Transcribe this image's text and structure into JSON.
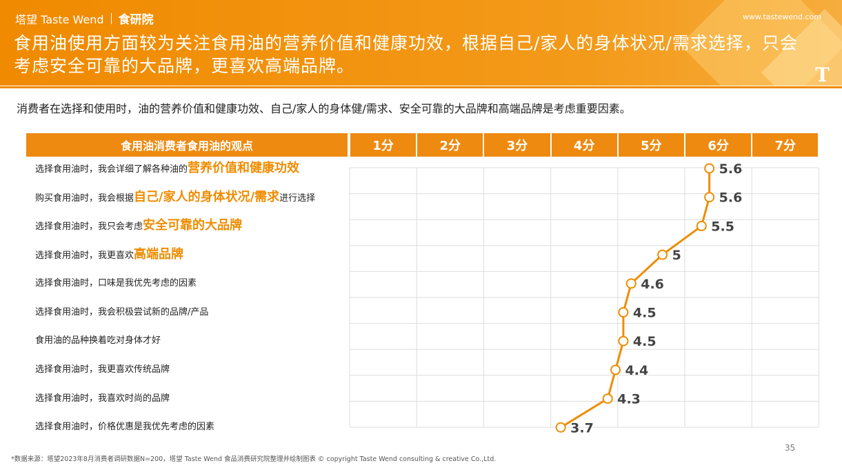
{
  "header": {
    "brand": "塔望 Taste Wend",
    "lab": "食研院",
    "site": "www.tastewend.com",
    "title": "食用油使用方面较为关注食用油的营养价值和健康功效，根据自己/家人的身体状况/需求选择，只会考虑安全可靠的大品牌，更喜欢高端品牌。",
    "logo_letter": "T"
  },
  "subtitle": "消费者在选择和使用时，油的营养价值和健康功效、自己/家人的身体健/需求、安全可靠的大品牌和高端品牌是考虑重要因素。",
  "chart_data": {
    "type": "line",
    "title": "食用油消费者食用油的观点",
    "x_categories": [
      "1分",
      "2分",
      "3分",
      "4分",
      "5分",
      "6分",
      "7分"
    ],
    "xlim": [
      1,
      7
    ],
    "grid": true,
    "rows": [
      {
        "prefix": "选择食用油时，我会详细了解各种油的",
        "highlight": "营养价值和健康功效",
        "suffix": "",
        "value": 5.6,
        "label": "5.6"
      },
      {
        "prefix": "购买食用油时，我会根据",
        "highlight": "自己/家人的身体状况/需求",
        "suffix": "进行选择",
        "value": 5.6,
        "label": "5.6"
      },
      {
        "prefix": "选择食用油时，我只会考虑",
        "highlight": "安全可靠的大品牌",
        "suffix": "",
        "value": 5.5,
        "label": "5.5"
      },
      {
        "prefix": "选择食用油时，我更喜欢",
        "highlight": "高端品牌",
        "suffix": "",
        "value": 5.0,
        "label": "5"
      },
      {
        "prefix": "选择食用油时，口味是我优先考虑的因素",
        "highlight": "",
        "suffix": "",
        "value": 4.6,
        "label": "4.6"
      },
      {
        "prefix": "选择食用油时，我会积极尝试新的品牌/产品",
        "highlight": "",
        "suffix": "",
        "value": 4.5,
        "label": "4.5"
      },
      {
        "prefix": "食用油的品种换着吃对身体才好",
        "highlight": "",
        "suffix": "",
        "value": 4.5,
        "label": "4.5"
      },
      {
        "prefix": "选择食用油时，我更喜欢传统品牌",
        "highlight": "",
        "suffix": "",
        "value": 4.4,
        "label": "4.4"
      },
      {
        "prefix": "选择食用油时，我喜欢时尚的品牌",
        "highlight": "",
        "suffix": "",
        "value": 4.3,
        "label": "4.3"
      },
      {
        "prefix": "选择食用油时，价格优惠是我优先考虑的因素",
        "highlight": "",
        "suffix": "",
        "value": 3.7,
        "label": "3.7"
      }
    ],
    "line_color": "#ef8c00",
    "marker_fill": "#ffffff"
  },
  "page_number": "35",
  "footnote": "*数据来源：塔望2023年8月消费者调研数据N=200，塔望 Taste Wend 食品消费研究院整理并绘制图表 © copyright Taste Wend consulting & creative Co.,Ltd."
}
